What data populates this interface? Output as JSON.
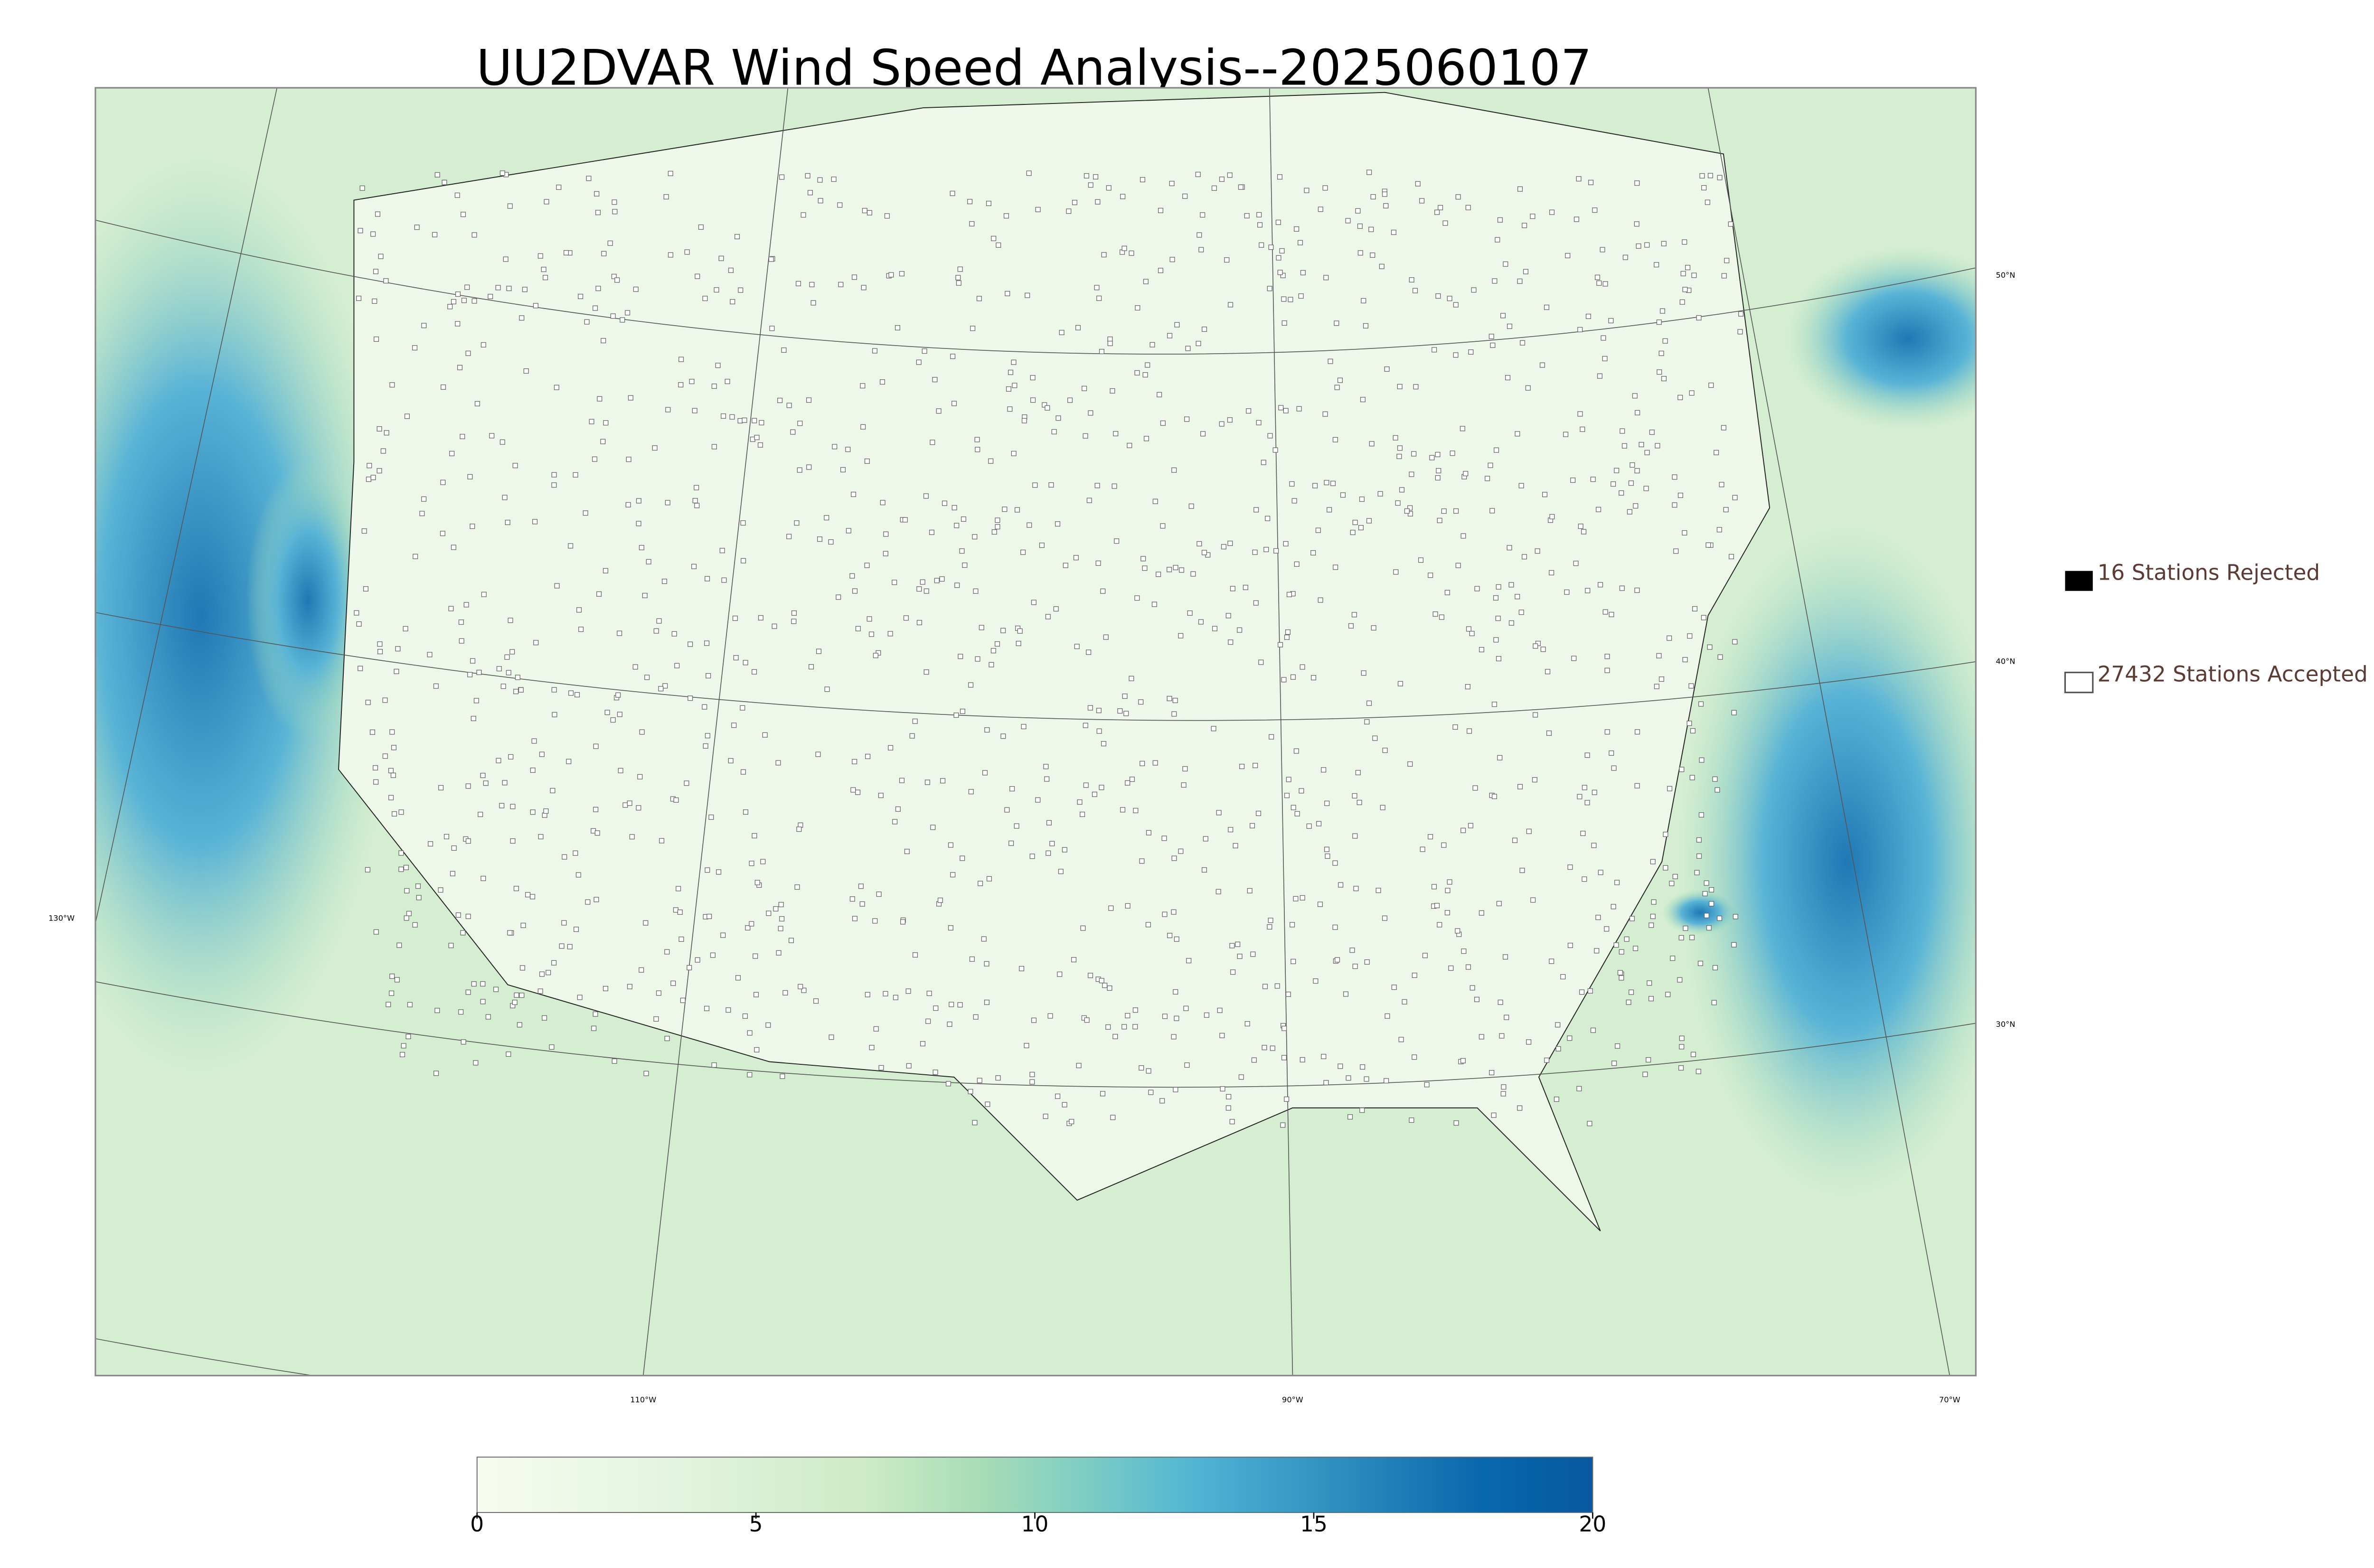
{
  "title": "UU2DVAR Wind Speed Analysis--2025060107",
  "legend": {
    "rejected": "16 Stations Rejected",
    "accepted": "27432 Stations Accepted"
  },
  "latitude_labels": [
    "50°N",
    "40°N",
    "30°N"
  ],
  "longitude_labels": [
    "130°W",
    "110°W",
    "90°W",
    "70°W"
  ],
  "colorbar": {
    "lim": [
      0,
      20
    ],
    "ticks": [
      0,
      5,
      10,
      15,
      20
    ]
  }
}
